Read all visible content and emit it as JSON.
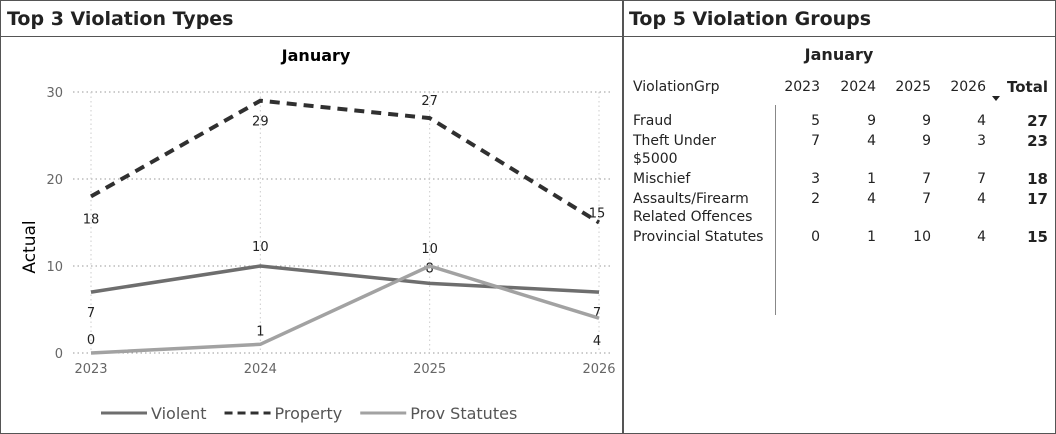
{
  "left_panel": {
    "title": "Top 3 Violation Types"
  },
  "chart_data": {
    "type": "line",
    "subtitle": "January",
    "y_label": "Actual",
    "categories": [
      "2023",
      "2024",
      "2025",
      "2026"
    ],
    "series": [
      {
        "name": "Violent",
        "color": "#6e6e6e",
        "dash": "solid",
        "values": [
          7,
          10,
          8,
          7
        ]
      },
      {
        "name": "Property",
        "color": "#303030",
        "dash": "dashed",
        "values": [
          18,
          29,
          27,
          15
        ]
      },
      {
        "name": "Prov Statutes",
        "color": "#a2a2a2",
        "dash": "solid",
        "values": [
          0,
          1,
          10,
          4
        ]
      }
    ],
    "ylim": [
      0,
      30
    ],
    "yticks": [
      0,
      10,
      20,
      30
    ],
    "grid": true,
    "legend": "bottom"
  },
  "table": {
    "title": "Top 5 Violation Groups",
    "subtitle": "January",
    "columns": [
      "ViolationGrp",
      "2023",
      "2024",
      "2025",
      "2026",
      "Total"
    ],
    "rows": [
      [
        "Fraud",
        "5",
        "9",
        "9",
        "4",
        "27"
      ],
      [
        "Theft Under $5000",
        "7",
        "4",
        "9",
        "3",
        "23"
      ],
      [
        "Mischief",
        "3",
        "1",
        "7",
        "7",
        "18"
      ],
      [
        "Assaults/Firearm Related Offences",
        "2",
        "4",
        "7",
        "4",
        "17"
      ],
      [
        "Provincial Statutes",
        "0",
        "1",
        "10",
        "4",
        "15"
      ]
    ]
  }
}
